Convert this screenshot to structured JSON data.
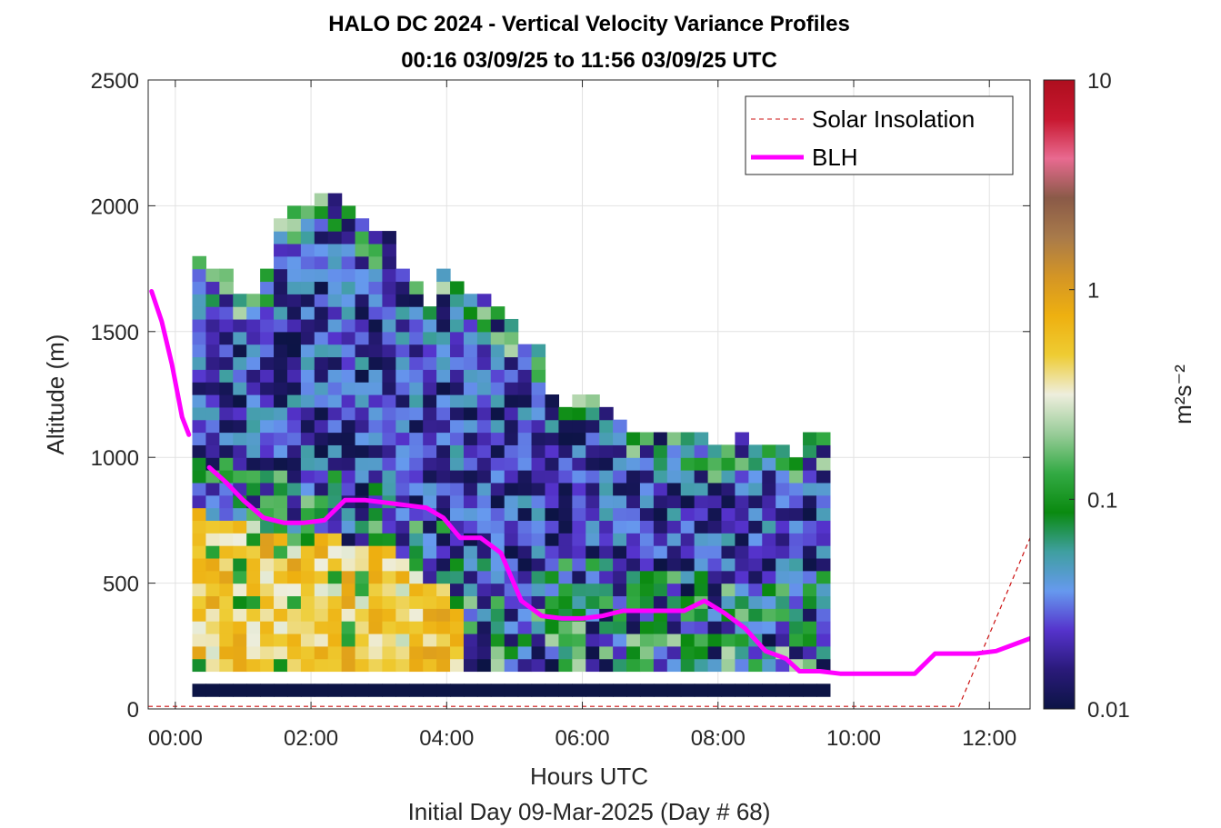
{
  "title_lines": [
    "HALO DC 2024 - Vertical Velocity Variance Profiles",
    "00:16 03/09/25 to 11:56 03/09/25  UTC"
  ],
  "chart_data": {
    "type": "heatmap",
    "xlabel": "Hours UTC",
    "footnote": "Initial Day 09-Mar-2025 (Day # 68)",
    "ylabel": "Altitude (m)",
    "xlim": [
      -0.4,
      12.6
    ],
    "ylim": [
      0,
      2500
    ],
    "x_ticks": [
      {
        "value": 0,
        "label": "00:00"
      },
      {
        "value": 2,
        "label": "02:00"
      },
      {
        "value": 4,
        "label": "04:00"
      },
      {
        "value": 6,
        "label": "06:00"
      },
      {
        "value": 8,
        "label": "08:00"
      },
      {
        "value": 10,
        "label": "10:00"
      },
      {
        "value": 12,
        "label": "12:00"
      }
    ],
    "y_ticks": [
      {
        "value": 0,
        "label": "0"
      },
      {
        "value": 500,
        "label": "500"
      },
      {
        "value": 1000,
        "label": "1000"
      },
      {
        "value": 1500,
        "label": "1500"
      },
      {
        "value": 2000,
        "label": "2000"
      },
      {
        "value": 2500,
        "label": "2500"
      }
    ],
    "grid": true,
    "colorbar": {
      "label": "m²s⁻²",
      "scale": "log",
      "range": [
        0.01,
        10
      ],
      "ticks": [
        {
          "value": 0.01,
          "label": "0.01"
        },
        {
          "value": 0.1,
          "label": "0.1"
        },
        {
          "value": 1,
          "label": "1"
        },
        {
          "value": 10,
          "label": "10"
        }
      ],
      "colors": [
        "#0c1445",
        "#2a1a7a",
        "#5533cc",
        "#6699ee",
        "#3f9fa0",
        "#0a8a10",
        "#33aa44",
        "#99cc99",
        "#eeeedd",
        "#eecc33",
        "#eeb010",
        "#d49525",
        "#a87a4a",
        "#8a5a48",
        "#e86a90",
        "#c81830",
        "#ae0e1e"
      ]
    },
    "legend": {
      "placement": "top-right",
      "entries": [
        {
          "label": "Solar Insolation",
          "color": "#cc1111",
          "style": "dashed"
        },
        {
          "label": "BLH",
          "color": "#ff00ff",
          "style": "solid"
        }
      ]
    },
    "heatmap": {
      "x_start": 0.25,
      "x_step": 0.2,
      "y_start": 100,
      "y_step": 50,
      "base_row_value": 0.01,
      "column_tops": [
        1800,
        1750,
        1750,
        1650,
        1650,
        1750,
        1950,
        2000,
        2000,
        2050,
        2050,
        2000,
        1950,
        1900,
        1900,
        1750,
        1700,
        1600,
        1750,
        1700,
        1650,
        1650,
        1600,
        1550,
        1450,
        1450,
        1250,
        1200,
        1250,
        1250,
        1200,
        1150,
        1100,
        1100,
        1100,
        1100,
        1100,
        1100,
        1050,
        1050,
        1100,
        1050,
        1050,
        1050,
        1000,
        1100,
        1100
      ],
      "bl_tops": [
        800,
        750,
        750,
        750,
        750,
        700,
        700,
        650,
        650,
        700,
        700,
        650,
        650,
        650,
        650,
        600,
        550,
        500,
        500,
        450,
        400,
        350,
        350,
        350,
        350,
        350,
        350,
        350,
        350,
        350,
        350,
        350,
        350,
        300,
        300,
        300,
        300,
        300,
        300,
        250,
        250,
        250,
        250,
        250,
        250,
        250,
        300
      ]
    },
    "blh_segment_1": {
      "x": [
        -0.35,
        -0.2,
        -0.05,
        0.1,
        0.2
      ],
      "y": [
        1660,
        1540,
        1370,
        1160,
        1090
      ]
    },
    "blh_segment_2": {
      "x": [
        0.5,
        0.75,
        1.0,
        1.3,
        1.6,
        1.9,
        2.2,
        2.5,
        2.8,
        3.1,
        3.4,
        3.7,
        3.95,
        4.2,
        4.5,
        4.8,
        5.1,
        5.4,
        5.7,
        6.0,
        6.3,
        6.6,
        6.9,
        7.2,
        7.5,
        7.8,
        8.1,
        8.4,
        8.7,
        9.0,
        9.2,
        9.5,
        9.8,
        10.1,
        10.4,
        10.7,
        10.9,
        11.2,
        11.5,
        11.8,
        12.1,
        12.4,
        12.6
      ],
      "y": [
        960,
        900,
        830,
        760,
        740,
        740,
        750,
        830,
        830,
        820,
        810,
        800,
        760,
        680,
        680,
        620,
        430,
        370,
        360,
        360,
        370,
        390,
        390,
        390,
        390,
        430,
        380,
        320,
        230,
        200,
        150,
        150,
        140,
        140,
        140,
        140,
        140,
        220,
        220,
        220,
        230,
        260,
        280
      ]
    },
    "solar_insolation": {
      "x": [
        -0.4,
        11.55,
        12.6
      ],
      "y": [
        10,
        10,
        680
      ]
    }
  }
}
